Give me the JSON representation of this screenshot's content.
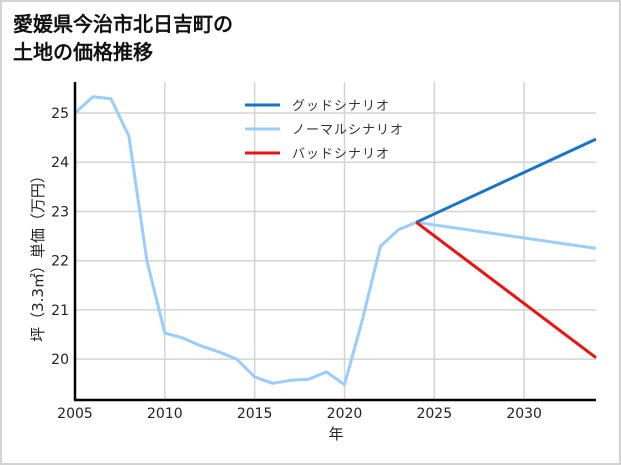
{
  "title_lines": [
    "愛媛県今治市北日吉町の",
    "土地の価格推移"
  ],
  "chart_data": {
    "type": "line",
    "title": "愛媛県今治市北日吉町の土地の価格推移",
    "xlabel": "年",
    "ylabel": "坪（3.3㎡）単価（万円）",
    "xlim": [
      2005,
      2034
    ],
    "ylim": [
      19.17,
      25.63
    ],
    "xticks": [
      2005,
      2010,
      2015,
      2020,
      2025,
      2030
    ],
    "yticks": [
      20,
      21,
      22,
      23,
      24,
      25
    ],
    "grid": true,
    "legend_position": "upper center",
    "series": [
      {
        "name": "グッドシナリオ",
        "color": "#1874c8",
        "x": [
          2024,
          2034
        ],
        "values": [
          22.78,
          24.47
        ]
      },
      {
        "name": "ノーマルシナリオ",
        "color": "#99ccff",
        "x": [
          2005,
          2006,
          2007,
          2008,
          2009,
          2010,
          2011,
          2012,
          2013,
          2014,
          2015,
          2016,
          2017,
          2018,
          2019,
          2020,
          2021,
          2022,
          2023,
          2024,
          2034
        ],
        "values": [
          25.0,
          25.33,
          25.29,
          24.53,
          22.0,
          20.53,
          20.43,
          20.27,
          20.15,
          20.0,
          19.64,
          19.51,
          19.57,
          19.59,
          19.74,
          19.48,
          20.8,
          22.29,
          22.63,
          22.78,
          22.25
        ]
      },
      {
        "name": "バッドシナリオ",
        "color": "#ee1111",
        "x": [
          2024,
          2034
        ],
        "values": [
          22.78,
          20.03
        ]
      }
    ]
  }
}
